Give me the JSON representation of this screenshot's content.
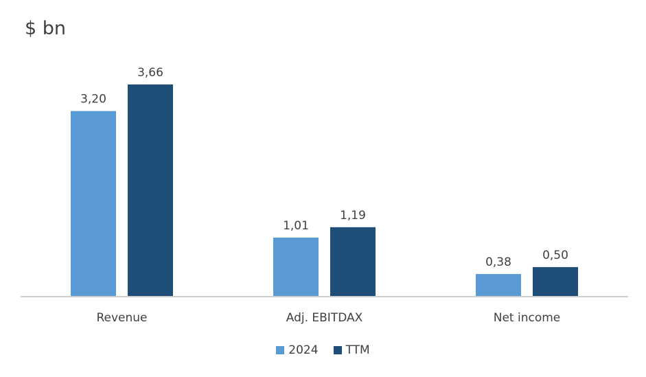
{
  "chart_data": {
    "type": "bar",
    "title": "$ bn",
    "categories": [
      "Revenue",
      "Adj. EBITDAX",
      "Net income"
    ],
    "series": [
      {
        "name": "2024",
        "values": [
          3.2,
          1.01,
          0.38
        ],
        "labels": [
          "3,20",
          "1,01",
          "0,38"
        ],
        "color": "#5b9bd5"
      },
      {
        "name": "TTM",
        "values": [
          3.66,
          1.19,
          0.5
        ],
        "labels": [
          "3,66",
          "1,19",
          "0,50"
        ],
        "color": "#1f4e79"
      }
    ],
    "ylim": [
      0,
      4.0
    ],
    "grid": false,
    "legend_position": "bottom"
  }
}
